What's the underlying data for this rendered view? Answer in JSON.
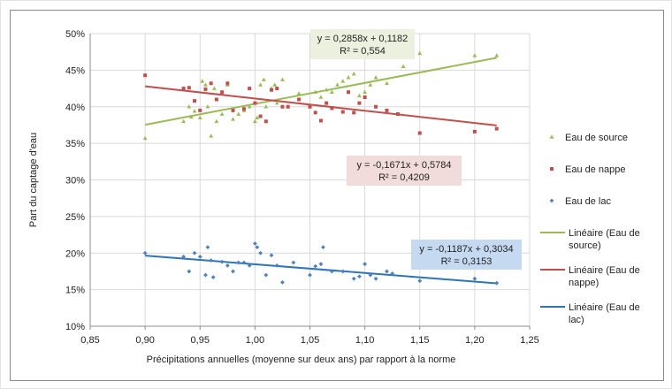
{
  "chart_data": {
    "type": "scatter",
    "xlabel": "Précipitations annuelles (moyenne sur deux ans) par rapport à la norme",
    "ylabel": "Part du captage d'eau",
    "xlim": [
      0.85,
      1.25
    ],
    "ylim": [
      0.1,
      0.5
    ],
    "x_ticks": [
      "0,85",
      "0,90",
      "0,95",
      "1,00",
      "1,05",
      "1,10",
      "1,15",
      "1,20",
      "1,25"
    ],
    "y_ticks": [
      "10%",
      "15%",
      "20%",
      "25%",
      "30%",
      "35%",
      "40%",
      "45%",
      "50%"
    ],
    "grid": true,
    "legend_position": "right",
    "series": [
      {
        "name": "Eau de source",
        "marker": "triangle",
        "color": "#9bbb59",
        "points": [
          [
            0.9,
            0.357
          ],
          [
            0.935,
            0.38
          ],
          [
            0.94,
            0.4
          ],
          [
            0.942,
            0.386
          ],
          [
            0.945,
            0.394
          ],
          [
            0.95,
            0.385
          ],
          [
            0.952,
            0.435
          ],
          [
            0.955,
            0.43
          ],
          [
            0.957,
            0.4
          ],
          [
            0.96,
            0.36
          ],
          [
            0.963,
            0.425
          ],
          [
            0.965,
            0.38
          ],
          [
            0.97,
            0.39
          ],
          [
            0.975,
            0.43
          ],
          [
            0.98,
            0.383
          ],
          [
            0.985,
            0.39
          ],
          [
            0.99,
            0.395
          ],
          [
            0.995,
            0.4
          ],
          [
            1.0,
            0.38
          ],
          [
            1.002,
            0.385
          ],
          [
            1.005,
            0.43
          ],
          [
            1.008,
            0.437
          ],
          [
            1.01,
            0.4
          ],
          [
            1.015,
            0.425
          ],
          [
            1.018,
            0.43
          ],
          [
            1.02,
            0.405
          ],
          [
            1.025,
            0.437
          ],
          [
            1.03,
            0.4
          ],
          [
            1.04,
            0.418
          ],
          [
            1.05,
            0.4
          ],
          [
            1.055,
            0.42
          ],
          [
            1.06,
            0.413
          ],
          [
            1.065,
            0.423
          ],
          [
            1.07,
            0.42
          ],
          [
            1.075,
            0.43
          ],
          [
            1.08,
            0.435
          ],
          [
            1.085,
            0.44
          ],
          [
            1.09,
            0.445
          ],
          [
            1.095,
            0.415
          ],
          [
            1.1,
            0.42
          ],
          [
            1.105,
            0.43
          ],
          [
            1.11,
            0.44
          ],
          [
            1.12,
            0.432
          ],
          [
            1.135,
            0.455
          ],
          [
            1.15,
            0.473
          ],
          [
            1.2,
            0.47
          ],
          [
            1.22,
            0.47
          ]
        ]
      },
      {
        "name": "Eau de nappe",
        "marker": "square",
        "color": "#c0504d",
        "points": [
          [
            0.9,
            0.443
          ],
          [
            0.935,
            0.425
          ],
          [
            0.94,
            0.426
          ],
          [
            0.945,
            0.408
          ],
          [
            0.95,
            0.395
          ],
          [
            0.955,
            0.424
          ],
          [
            0.96,
            0.432
          ],
          [
            0.965,
            0.41
          ],
          [
            0.97,
            0.42
          ],
          [
            0.975,
            0.432
          ],
          [
            0.98,
            0.395
          ],
          [
            0.99,
            0.397
          ],
          [
            0.995,
            0.425
          ],
          [
            1.0,
            0.405
          ],
          [
            1.005,
            0.387
          ],
          [
            1.01,
            0.38
          ],
          [
            1.015,
            0.423
          ],
          [
            1.02,
            0.425
          ],
          [
            1.025,
            0.4
          ],
          [
            1.03,
            0.4
          ],
          [
            1.04,
            0.41
          ],
          [
            1.05,
            0.4
          ],
          [
            1.055,
            0.392
          ],
          [
            1.06,
            0.381
          ],
          [
            1.065,
            0.405
          ],
          [
            1.07,
            0.398
          ],
          [
            1.08,
            0.393
          ],
          [
            1.085,
            0.42
          ],
          [
            1.09,
            0.392
          ],
          [
            1.095,
            0.405
          ],
          [
            1.1,
            0.413
          ],
          [
            1.11,
            0.4
          ],
          [
            1.12,
            0.395
          ],
          [
            1.13,
            0.39
          ],
          [
            1.15,
            0.364
          ],
          [
            1.2,
            0.366
          ],
          [
            1.22,
            0.37
          ]
        ]
      },
      {
        "name": "Eau de lac",
        "marker": "diamond",
        "color": "#4f81bd",
        "points": [
          [
            0.9,
            0.2
          ],
          [
            0.935,
            0.195
          ],
          [
            0.94,
            0.175
          ],
          [
            0.945,
            0.2
          ],
          [
            0.95,
            0.195
          ],
          [
            0.955,
            0.17
          ],
          [
            0.957,
            0.208
          ],
          [
            0.96,
            0.19
          ],
          [
            0.962,
            0.167
          ],
          [
            0.97,
            0.188
          ],
          [
            0.975,
            0.183
          ],
          [
            0.98,
            0.175
          ],
          [
            0.985,
            0.187
          ],
          [
            0.99,
            0.187
          ],
          [
            0.995,
            0.183
          ],
          [
            1.0,
            0.213
          ],
          [
            1.002,
            0.208
          ],
          [
            1.005,
            0.2
          ],
          [
            1.01,
            0.17
          ],
          [
            1.015,
            0.197
          ],
          [
            1.02,
            0.183
          ],
          [
            1.025,
            0.16
          ],
          [
            1.035,
            0.187
          ],
          [
            1.05,
            0.17
          ],
          [
            1.055,
            0.182
          ],
          [
            1.06,
            0.185
          ],
          [
            1.062,
            0.208
          ],
          [
            1.07,
            0.175
          ],
          [
            1.08,
            0.175
          ],
          [
            1.09,
            0.165
          ],
          [
            1.095,
            0.168
          ],
          [
            1.1,
            0.185
          ],
          [
            1.105,
            0.17
          ],
          [
            1.11,
            0.165
          ],
          [
            1.12,
            0.175
          ],
          [
            1.125,
            0.172
          ],
          [
            1.15,
            0.162
          ],
          [
            1.2,
            0.165
          ],
          [
            1.22,
            0.159
          ]
        ]
      }
    ],
    "trendlines": [
      {
        "name": "Linéaire (Eau de source)",
        "color": "#9bbb59",
        "slope": 0.2858,
        "intercept": 0.1182,
        "x": [
          0.9,
          1.22
        ],
        "equation": "y = 0,2858x + 0,1182",
        "r2": "R² = 0,554",
        "box_color": "#ebf1de"
      },
      {
        "name": "Linéaire (Eau de nappe)",
        "color": "#c0504d",
        "slope": -0.1671,
        "intercept": 0.5784,
        "x": [
          0.9,
          1.22
        ],
        "equation": "y = -0,1671x + 0,5784",
        "r2": "R² = 0,4209",
        "box_color": "#f2dcdb"
      },
      {
        "name": "Linéaire (Eau de lac)",
        "color": "#2e75b6",
        "slope": -0.1187,
        "intercept": 0.3034,
        "x": [
          0.9,
          1.22
        ],
        "equation": "y = -0,1187x + 0,3034",
        "r2": "R² = 0,3153",
        "box_color": "#c5d9f1"
      }
    ],
    "legend": [
      {
        "label": "Eau de source",
        "kind": "marker",
        "marker": "triangle",
        "color": "#9bbb59"
      },
      {
        "label": "Eau de nappe",
        "kind": "marker",
        "marker": "square",
        "color": "#c0504d"
      },
      {
        "label": "Eau de lac",
        "kind": "marker",
        "marker": "diamond",
        "color": "#4f81bd"
      },
      {
        "label": "Linéaire (Eau de source)",
        "kind": "line",
        "color": "#9bbb59"
      },
      {
        "label": "Linéaire (Eau de nappe)",
        "kind": "line",
        "color": "#c0504d"
      },
      {
        "label": "Linéaire (Eau de lac)",
        "kind": "line",
        "color": "#2e75b6"
      }
    ]
  }
}
